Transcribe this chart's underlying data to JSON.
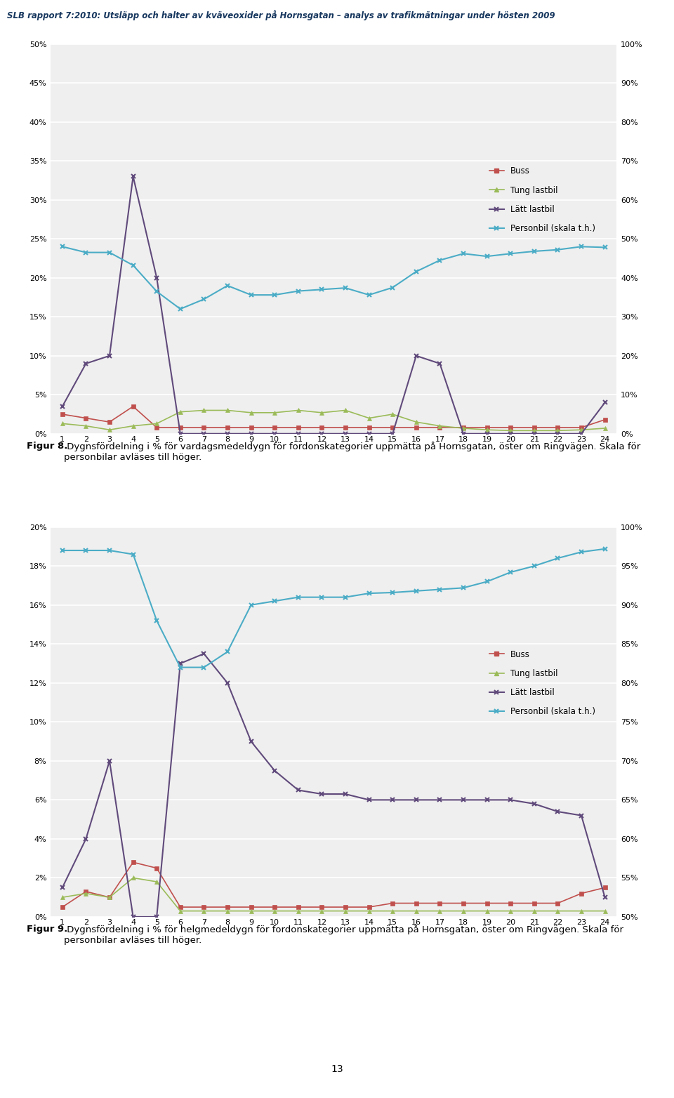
{
  "header": "SLB rapport 7:2010: Utsläpp och halter av kväveoxider på Hornsgatan – analys av trafikmätningar under hösten 2009",
  "fig8_caption_bold": "Figur 8.",
  "fig8_caption_rest": " Dygnsfördelning i % för vardagsmedeldygn för fordonskategorier uppmätta på Hornsgatan, öster om Ringvägen. Skala för personbilar avläses till höger.",
  "fig9_caption_bold": "Figur 9.",
  "fig9_caption_rest": " Dygnsfördelning i % för helgmedeldygn för fordonskategorier uppmätta på Hornsgatan, öster om Ringvägen. Skala för personbilar avläses till höger.",
  "page_number": "13",
  "hours": [
    1,
    2,
    3,
    4,
    5,
    6,
    7,
    8,
    9,
    10,
    11,
    12,
    13,
    14,
    15,
    16,
    17,
    18,
    19,
    20,
    21,
    22,
    23,
    24
  ],
  "fig8": {
    "buss": [
      0.025,
      0.02,
      0.015,
      0.035,
      0.008,
      0.008,
      0.008,
      0.008,
      0.008,
      0.008,
      0.008,
      0.008,
      0.008,
      0.008,
      0.008,
      0.008,
      0.008,
      0.008,
      0.008,
      0.008,
      0.008,
      0.008,
      0.008,
      0.018
    ],
    "tung_lastbil": [
      0.013,
      0.01,
      0.005,
      0.01,
      0.013,
      0.028,
      0.03,
      0.03,
      0.027,
      0.027,
      0.03,
      0.027,
      0.03,
      0.02,
      0.025,
      0.015,
      0.01,
      0.007,
      0.005,
      0.004,
      0.004,
      0.004,
      0.005,
      0.007
    ],
    "latt_lastbil": [
      0.035,
      0.09,
      0.1,
      0.33,
      0.2,
      0.0,
      0.0,
      0.0,
      0.0,
      0.0,
      0.0,
      0.0,
      0.0,
      0.0,
      0.0,
      0.1,
      0.09,
      0.0,
      0.0,
      0.0,
      0.0,
      0.0,
      0.0,
      0.04
    ],
    "personbil": [
      0.48,
      0.465,
      0.465,
      0.432,
      0.365,
      0.32,
      0.345,
      0.38,
      0.356,
      0.356,
      0.366,
      0.37,
      0.374,
      0.356,
      0.375,
      0.416,
      0.445,
      0.462,
      0.455,
      0.462,
      0.468,
      0.472,
      0.48,
      0.478
    ],
    "left_ylim": [
      0.0,
      0.5
    ],
    "right_ylim": [
      0.0,
      1.0
    ],
    "left_yticks": [
      0.0,
      0.05,
      0.1,
      0.15,
      0.2,
      0.25,
      0.3,
      0.35,
      0.4,
      0.45,
      0.5
    ],
    "right_yticks": [
      0.0,
      0.1,
      0.2,
      0.3,
      0.4,
      0.5,
      0.6,
      0.7,
      0.8,
      0.9,
      1.0
    ]
  },
  "fig9": {
    "buss": [
      0.005,
      0.013,
      0.01,
      0.028,
      0.025,
      0.005,
      0.005,
      0.005,
      0.005,
      0.005,
      0.005,
      0.005,
      0.005,
      0.005,
      0.007,
      0.007,
      0.007,
      0.007,
      0.007,
      0.007,
      0.007,
      0.007,
      0.012,
      0.015
    ],
    "tung_lastbil": [
      0.01,
      0.012,
      0.01,
      0.02,
      0.018,
      0.003,
      0.003,
      0.003,
      0.003,
      0.003,
      0.003,
      0.003,
      0.003,
      0.003,
      0.003,
      0.003,
      0.003,
      0.003,
      0.003,
      0.003,
      0.003,
      0.003,
      0.003,
      0.003
    ],
    "latt_lastbil": [
      0.015,
      0.04,
      0.08,
      0.0,
      0.0,
      0.13,
      0.135,
      0.12,
      0.09,
      0.075,
      0.065,
      0.063,
      0.063,
      0.06,
      0.06,
      0.06,
      0.06,
      0.06,
      0.06,
      0.06,
      0.058,
      0.054,
      0.052,
      0.01
    ],
    "personbil": [
      0.97,
      0.97,
      0.97,
      0.965,
      0.88,
      0.82,
      0.82,
      0.84,
      0.9,
      0.905,
      0.91,
      0.91,
      0.91,
      0.915,
      0.916,
      0.918,
      0.92,
      0.922,
      0.93,
      0.942,
      0.95,
      0.96,
      0.968,
      0.972
    ],
    "left_ylim": [
      0.0,
      0.2
    ],
    "right_ylim": [
      0.5,
      1.0
    ],
    "left_yticks": [
      0.0,
      0.02,
      0.04,
      0.06,
      0.08,
      0.1,
      0.12,
      0.14,
      0.16,
      0.18,
      0.2
    ],
    "right_yticks": [
      0.5,
      0.55,
      0.6,
      0.65,
      0.7,
      0.75,
      0.8,
      0.85,
      0.9,
      0.95,
      1.0
    ]
  },
  "colors": {
    "buss": "#C0504D",
    "tung_lastbil": "#9BBB59",
    "latt_lastbil": "#604A7B",
    "personbil": "#4BACC6",
    "header_text": "#17375E",
    "axis_bg": "#EFEFEF",
    "grid_color": "#FFFFFF"
  },
  "legend_labels": {
    "buss": "Buss",
    "tung_lastbil": "Tung lastbil",
    "latt_lastbil": "Lätt lastbil",
    "personbil": "Personbil (skala t.h.)"
  }
}
